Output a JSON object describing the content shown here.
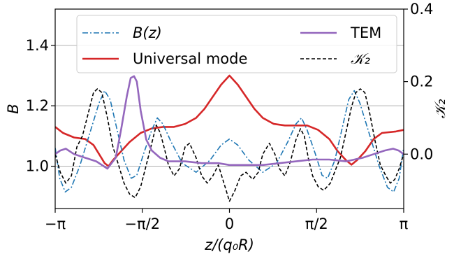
{
  "chart_data": {
    "type": "line",
    "x_unit": "radians",
    "xlim": [
      -3.14159,
      3.14159
    ],
    "ylim_left": [
      0.86,
      1.52
    ],
    "ylim_right": [
      -0.15,
      0.4
    ],
    "xlabel": "z/(q₀R)",
    "ylabel_left": "B",
    "ylabel_right": "𝒦₂",
    "x_ticks": [
      {
        "value": -3.14159,
        "label": "−π"
      },
      {
        "value": -1.5708,
        "label": "−π/2"
      },
      {
        "value": 0,
        "label": "0"
      },
      {
        "value": 1.5708,
        "label": "π/2"
      },
      {
        "value": 3.14159,
        "label": "π"
      }
    ],
    "y_ticks_left": [
      {
        "value": 1.0,
        "label": "1.0"
      },
      {
        "value": 1.2,
        "label": "1.2"
      },
      {
        "value": 1.4,
        "label": "1.4"
      }
    ],
    "y_ticks_right": [
      {
        "value": 0.0,
        "label": "0.0"
      },
      {
        "value": 0.2,
        "label": "0.2"
      },
      {
        "value": 0.4,
        "label": "0.4"
      }
    ],
    "grid": "horizontal",
    "legend": {
      "position": "top",
      "entries": [
        {
          "label": "B(z)",
          "series": "B"
        },
        {
          "label": "Universal mode",
          "series": "universal"
        },
        {
          "label": "TEM",
          "series": "tem"
        },
        {
          "label": "𝒦₂",
          "series": "K2"
        }
      ]
    },
    "series": [
      {
        "name": "B(z)",
        "key": "B",
        "axis": "left",
        "color": "#1f77b4",
        "dash": "dashdot",
        "points": [
          [
            -3.14,
            1.06
          ],
          [
            -3.06,
            0.96
          ],
          [
            -2.96,
            0.915
          ],
          [
            -2.85,
            0.93
          ],
          [
            -2.7,
            1.0
          ],
          [
            -2.5,
            1.12
          ],
          [
            -2.35,
            1.21
          ],
          [
            -2.25,
            1.25
          ],
          [
            -2.15,
            1.22
          ],
          [
            -2.05,
            1.14
          ],
          [
            -1.9,
            1.02
          ],
          [
            -1.77,
            0.96
          ],
          [
            -1.67,
            0.97
          ],
          [
            -1.55,
            1.04
          ],
          [
            -1.4,
            1.12
          ],
          [
            -1.3,
            1.16
          ],
          [
            -1.2,
            1.14
          ],
          [
            -1.05,
            1.08
          ],
          [
            -0.85,
            1.01
          ],
          [
            -0.6,
            0.98
          ],
          [
            -0.35,
            1.02
          ],
          [
            -0.15,
            1.07
          ],
          [
            0.0,
            1.09
          ],
          [
            0.15,
            1.07
          ],
          [
            0.35,
            1.02
          ],
          [
            0.6,
            0.98
          ],
          [
            0.85,
            1.01
          ],
          [
            1.05,
            1.08
          ],
          [
            1.2,
            1.14
          ],
          [
            1.3,
            1.16
          ],
          [
            1.4,
            1.12
          ],
          [
            1.55,
            1.04
          ],
          [
            1.67,
            0.97
          ],
          [
            1.77,
            0.96
          ],
          [
            1.9,
            1.02
          ],
          [
            2.05,
            1.14
          ],
          [
            2.15,
            1.22
          ],
          [
            2.25,
            1.25
          ],
          [
            2.35,
            1.21
          ],
          [
            2.5,
            1.12
          ],
          [
            2.7,
            1.0
          ],
          [
            2.85,
            0.93
          ],
          [
            2.96,
            0.915
          ],
          [
            3.06,
            0.96
          ],
          [
            3.14,
            1.06
          ]
        ]
      },
      {
        "name": "Universal mode",
        "key": "universal",
        "axis": "left",
        "color": "#d62728",
        "dash": "solid",
        "points": [
          [
            -3.14,
            1.13
          ],
          [
            -3.0,
            1.11
          ],
          [
            -2.8,
            1.095
          ],
          [
            -2.6,
            1.09
          ],
          [
            -2.45,
            1.07
          ],
          [
            -2.35,
            1.04
          ],
          [
            -2.25,
            1.01
          ],
          [
            -2.18,
            1.0
          ],
          [
            -2.1,
            1.02
          ],
          [
            -1.95,
            1.05
          ],
          [
            -1.8,
            1.08
          ],
          [
            -1.6,
            1.11
          ],
          [
            -1.4,
            1.125
          ],
          [
            -1.2,
            1.13
          ],
          [
            -1.0,
            1.13
          ],
          [
            -0.8,
            1.14
          ],
          [
            -0.6,
            1.16
          ],
          [
            -0.45,
            1.19
          ],
          [
            -0.3,
            1.23
          ],
          [
            -0.15,
            1.27
          ],
          [
            0.0,
            1.3
          ],
          [
            0.15,
            1.27
          ],
          [
            0.3,
            1.23
          ],
          [
            0.45,
            1.19
          ],
          [
            0.6,
            1.16
          ],
          [
            0.8,
            1.14
          ],
          [
            1.0,
            1.135
          ],
          [
            1.2,
            1.135
          ],
          [
            1.4,
            1.135
          ],
          [
            1.6,
            1.12
          ],
          [
            1.8,
            1.09
          ],
          [
            1.95,
            1.05
          ],
          [
            2.1,
            1.02
          ],
          [
            2.2,
            1.005
          ],
          [
            2.3,
            1.02
          ],
          [
            2.45,
            1.05
          ],
          [
            2.6,
            1.09
          ],
          [
            2.75,
            1.11
          ],
          [
            3.0,
            1.115
          ],
          [
            3.14,
            1.12
          ]
        ]
      },
      {
        "name": "TEM",
        "key": "tem",
        "axis": "right",
        "color": "#9467bd",
        "dash": "solid",
        "points": [
          [
            -3.14,
            0.0
          ],
          [
            -3.05,
            0.01
          ],
          [
            -2.95,
            0.015
          ],
          [
            -2.8,
            0.0
          ],
          [
            -2.6,
            -0.01
          ],
          [
            -2.4,
            -0.02
          ],
          [
            -2.2,
            -0.04
          ],
          [
            -2.05,
            -0.01
          ],
          [
            -1.95,
            0.07
          ],
          [
            -1.85,
            0.16
          ],
          [
            -1.78,
            0.21
          ],
          [
            -1.72,
            0.215
          ],
          [
            -1.67,
            0.2
          ],
          [
            -1.6,
            0.12
          ],
          [
            -1.5,
            0.04
          ],
          [
            -1.4,
            0.01
          ],
          [
            -1.25,
            -0.01
          ],
          [
            -1.1,
            -0.02
          ],
          [
            -0.8,
            -0.02
          ],
          [
            -0.5,
            -0.025
          ],
          [
            -0.2,
            -0.025
          ],
          [
            0.0,
            -0.03
          ],
          [
            0.3,
            -0.03
          ],
          [
            0.6,
            -0.03
          ],
          [
            0.9,
            -0.025
          ],
          [
            1.2,
            -0.02
          ],
          [
            1.5,
            -0.015
          ],
          [
            1.8,
            -0.015
          ],
          [
            2.1,
            -0.02
          ],
          [
            2.4,
            -0.01
          ],
          [
            2.6,
            0.0
          ],
          [
            2.8,
            0.01
          ],
          [
            2.95,
            0.015
          ],
          [
            3.05,
            0.01
          ],
          [
            3.14,
            0.0
          ]
        ]
      },
      {
        "name": "𝒦₂",
        "key": "K2",
        "axis": "right",
        "color": "#000000",
        "dash": "dashed",
        "points": [
          [
            -3.14,
            0.0
          ],
          [
            -3.05,
            -0.05
          ],
          [
            -2.95,
            -0.08
          ],
          [
            -2.85,
            -0.06
          ],
          [
            -2.75,
            0.02
          ],
          [
            -2.65,
            0.05
          ],
          [
            -2.55,
            0.11
          ],
          [
            -2.45,
            0.17
          ],
          [
            -2.38,
            0.18
          ],
          [
            -2.3,
            0.17
          ],
          [
            -2.2,
            0.1
          ],
          [
            -2.1,
            0.02
          ],
          [
            -2.0,
            -0.03
          ],
          [
            -1.9,
            -0.08
          ],
          [
            -1.8,
            -0.11
          ],
          [
            -1.7,
            -0.12
          ],
          [
            -1.6,
            -0.09
          ],
          [
            -1.5,
            -0.03
          ],
          [
            -1.4,
            0.03
          ],
          [
            -1.32,
            0.08
          ],
          [
            -1.25,
            0.06
          ],
          [
            -1.18,
            0.02
          ],
          [
            -1.1,
            -0.03
          ],
          [
            -1.0,
            -0.06
          ],
          [
            -0.9,
            -0.04
          ],
          [
            -0.8,
            0.02
          ],
          [
            -0.72,
            0.03
          ],
          [
            -0.6,
            -0.01
          ],
          [
            -0.5,
            -0.06
          ],
          [
            -0.4,
            -0.08
          ],
          [
            -0.3,
            -0.06
          ],
          [
            -0.2,
            -0.03
          ],
          [
            -0.1,
            -0.08
          ],
          [
            0.0,
            -0.13
          ],
          [
            0.1,
            -0.1
          ],
          [
            0.2,
            -0.06
          ],
          [
            0.3,
            -0.05
          ],
          [
            0.42,
            -0.07
          ],
          [
            0.52,
            -0.05
          ],
          [
            0.6,
            0.0
          ],
          [
            0.72,
            0.03
          ],
          [
            0.82,
            0.0
          ],
          [
            0.9,
            -0.04
          ],
          [
            1.0,
            -0.06
          ],
          [
            1.1,
            -0.02
          ],
          [
            1.2,
            0.04
          ],
          [
            1.28,
            0.07
          ],
          [
            1.35,
            0.05
          ],
          [
            1.42,
            -0.01
          ],
          [
            1.5,
            -0.06
          ],
          [
            1.6,
            -0.09
          ],
          [
            1.7,
            -0.1
          ],
          [
            1.82,
            -0.08
          ],
          [
            1.92,
            -0.04
          ],
          [
            2.0,
            -0.01
          ],
          [
            2.1,
            0.06
          ],
          [
            2.2,
            0.13
          ],
          [
            2.28,
            0.17
          ],
          [
            2.36,
            0.18
          ],
          [
            2.44,
            0.17
          ],
          [
            2.52,
            0.12
          ],
          [
            2.62,
            0.04
          ],
          [
            2.72,
            -0.03
          ],
          [
            2.82,
            -0.06
          ],
          [
            2.9,
            -0.08
          ],
          [
            2.98,
            -0.07
          ],
          [
            3.06,
            -0.04
          ],
          [
            3.14,
            0.0
          ]
        ]
      }
    ]
  }
}
